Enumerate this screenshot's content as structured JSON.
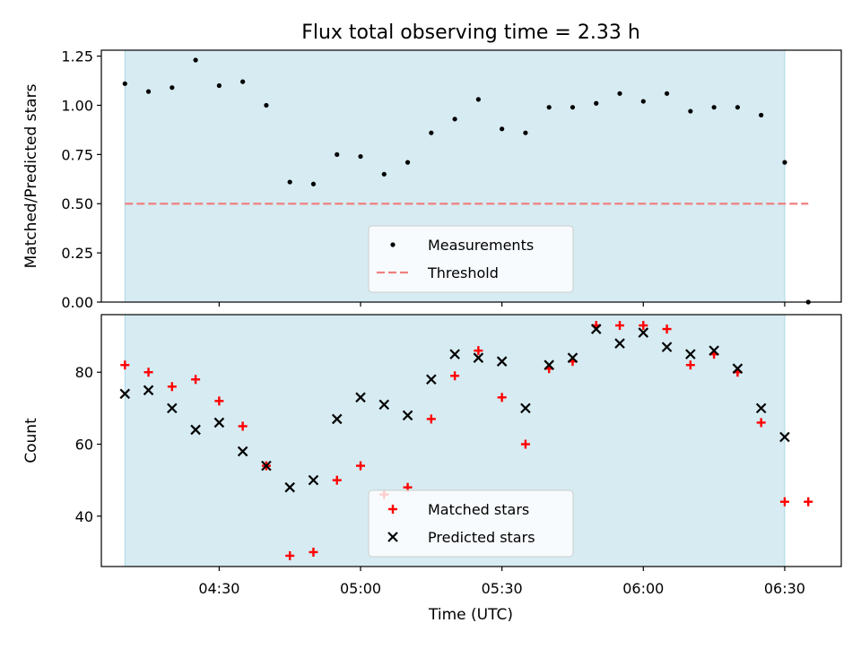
{
  "title": "Flux total observing time = 2.33 h",
  "xlabel": "Time (UTC)",
  "x_tick_labels": [
    "04:30",
    "05:00",
    "05:30",
    "06:00",
    "06:30"
  ],
  "colors": {
    "shade": "#add8e6",
    "measurement": "#000000",
    "threshold": "#f08080",
    "matched": "#ff0000",
    "predicted": "#000000"
  },
  "chart_data": [
    {
      "type": "scatter",
      "ylabel": "Matched/Predicted stars",
      "xlim": [
        "04:05",
        "06:42"
      ],
      "ylim": [
        0,
        1.28
      ],
      "y_tick_labels": [
        "0.00",
        "0.25",
        "0.50",
        "0.75",
        "1.00",
        "1.25"
      ],
      "y_ticks": [
        0,
        0.25,
        0.5,
        0.75,
        1.0,
        1.25
      ],
      "shaded_span": [
        "04:10",
        "06:30"
      ],
      "legend_placement": "lower center",
      "threshold": {
        "name": "Threshold",
        "value": 0.5,
        "x_range": [
          "04:10",
          "06:35"
        ],
        "style": "dashed"
      },
      "series": [
        {
          "name": "Measurements",
          "x": [
            "04:10",
            "04:15",
            "04:20",
            "04:25",
            "04:30",
            "04:35",
            "04:40",
            "04:45",
            "04:50",
            "04:55",
            "05:00",
            "05:05",
            "05:10",
            "05:15",
            "05:20",
            "05:25",
            "05:30",
            "05:35",
            "05:40",
            "05:45",
            "05:50",
            "05:55",
            "06:00",
            "06:05",
            "06:10",
            "06:15",
            "06:20",
            "06:25",
            "06:30",
            "06:35"
          ],
          "y": [
            1.11,
            1.07,
            1.09,
            1.23,
            1.1,
            1.12,
            1.0,
            0.61,
            0.6,
            0.75,
            0.74,
            0.65,
            0.71,
            0.86,
            0.93,
            1.03,
            0.88,
            0.86,
            0.99,
            0.99,
            1.01,
            1.06,
            1.02,
            1.06,
            0.97,
            0.99,
            0.99,
            0.95,
            0.71,
            0.0
          ]
        }
      ]
    },
    {
      "type": "scatter",
      "ylabel": "Count",
      "xlim": [
        "04:05",
        "06:42"
      ],
      "ylim": [
        26,
        96
      ],
      "y_tick_labels": [
        "40",
        "60",
        "80"
      ],
      "y_ticks": [
        40,
        60,
        80
      ],
      "shaded_span": [
        "04:10",
        "06:30"
      ],
      "legend_placement": "lower center",
      "series": [
        {
          "name": "Matched stars",
          "marker": "plus",
          "x": [
            "04:10",
            "04:15",
            "04:20",
            "04:25",
            "04:30",
            "04:35",
            "04:40",
            "04:45",
            "04:50",
            "04:55",
            "05:00",
            "05:05",
            "05:10",
            "05:15",
            "05:20",
            "05:25",
            "05:30",
            "05:35",
            "05:40",
            "05:45",
            "05:50",
            "05:55",
            "06:00",
            "06:05",
            "06:10",
            "06:15",
            "06:20",
            "06:25",
            "06:30",
            "06:35"
          ],
          "y": [
            82,
            80,
            76,
            78,
            72,
            65,
            54,
            29,
            30,
            50,
            54,
            46,
            48,
            67,
            79,
            86,
            73,
            60,
            81,
            83,
            93,
            93,
            93,
            92,
            82,
            85,
            80,
            66,
            44,
            44
          ]
        },
        {
          "name": "Predicted stars",
          "marker": "x",
          "x": [
            "04:10",
            "04:15",
            "04:20",
            "04:25",
            "04:30",
            "04:35",
            "04:40",
            "04:45",
            "04:50",
            "04:55",
            "05:00",
            "05:05",
            "05:10",
            "05:15",
            "05:20",
            "05:25",
            "05:30",
            "05:35",
            "05:40",
            "05:45",
            "05:50",
            "05:55",
            "06:00",
            "06:05",
            "06:10",
            "06:15",
            "06:20",
            "06:25",
            "06:30"
          ],
          "y": [
            74,
            75,
            70,
            64,
            66,
            58,
            54,
            48,
            50,
            67,
            73,
            71,
            68,
            78,
            85,
            84,
            83,
            70,
            82,
            84,
            92,
            88,
            91,
            87,
            85,
            86,
            81,
            70,
            62
          ]
        }
      ]
    }
  ]
}
